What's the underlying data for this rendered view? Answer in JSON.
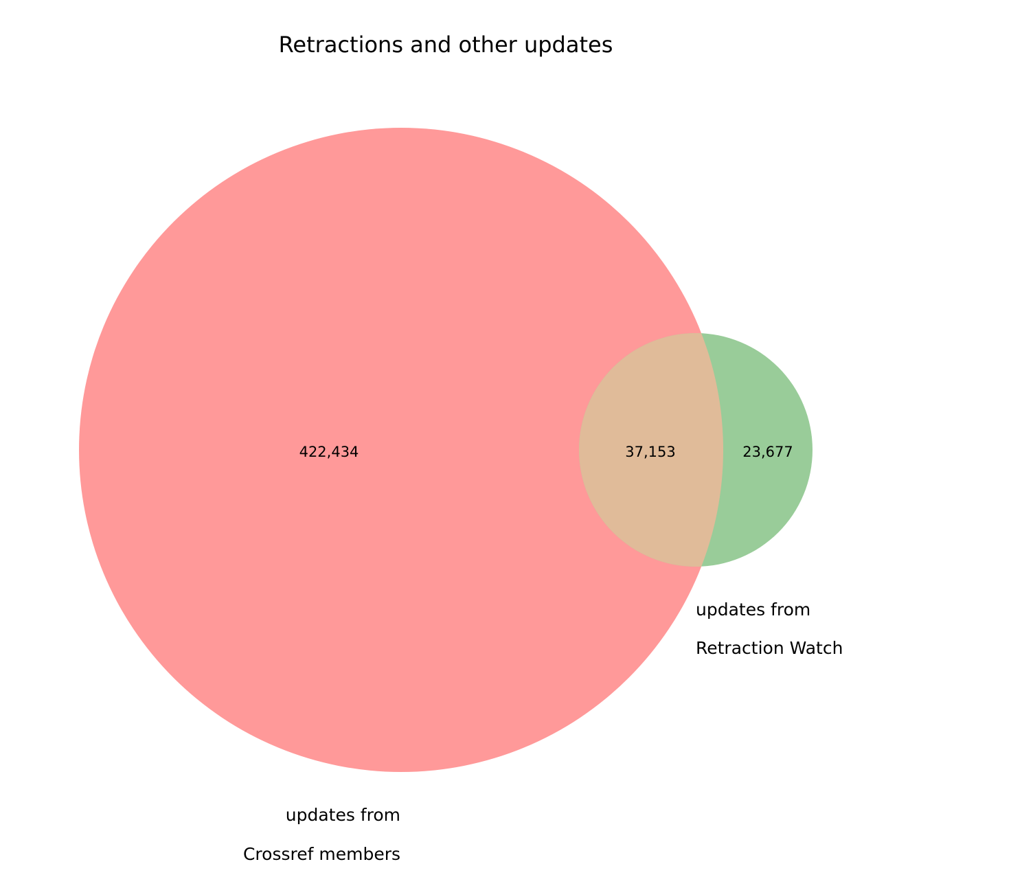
{
  "chart_data": {
    "type": "venn",
    "title": "Retractions and other updates",
    "sets": [
      {
        "name": "updates from Crossref members",
        "label_lines": [
          "updates from",
          "Crossref members"
        ],
        "only_count": 422434,
        "only_label": "422,434",
        "color": "#ff9999"
      },
      {
        "name": "updates from Retraction Watch",
        "label_lines": [
          "updates from",
          "Retraction Watch"
        ],
        "only_count": 23677,
        "only_label": "23,677",
        "color": "#99cc99"
      }
    ],
    "intersection": {
      "count": 37153,
      "label": "37,153",
      "color": "#e0bb99"
    }
  }
}
